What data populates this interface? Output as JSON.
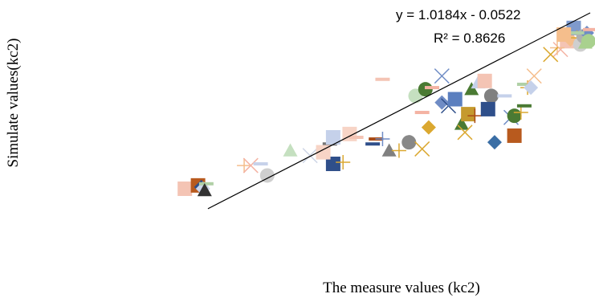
{
  "chart_data": {
    "type": "scatter",
    "xlabel": "The measure values (kc2)",
    "ylabel": "Simulate values(kc2)",
    "xlim": [
      0,
      1.25
    ],
    "ylim": [
      0,
      1.25
    ],
    "trendline": {
      "slope": 1.0184,
      "intercept": -0.0522,
      "equation": "y = 1.0184x - 0.0522",
      "r_squared": "R² = 0.8626"
    },
    "points": [
      {
        "x": 0.02,
        "y": 0.16,
        "marker": "square",
        "color": "#f4c4b4"
      },
      {
        "x": 0.06,
        "y": 0.18,
        "marker": "square",
        "color": "#b85a1e"
      },
      {
        "x": 0.07,
        "y": 0.17,
        "marker": "diamond",
        "color": "#2f4f8a"
      },
      {
        "x": 0.075,
        "y": 0.16,
        "marker": "diamond",
        "color": "#ccd6ea"
      },
      {
        "x": 0.085,
        "y": 0.19,
        "marker": "dash",
        "color": "#b0d0a6"
      },
      {
        "x": 0.08,
        "y": 0.15,
        "marker": "triangle",
        "color": "#333333"
      },
      {
        "x": 0.2,
        "y": 0.3,
        "marker": "plus",
        "color": "#f5be8c"
      },
      {
        "x": 0.22,
        "y": 0.3,
        "marker": "cross",
        "color": "#f4b3a3"
      },
      {
        "x": 0.25,
        "y": 0.31,
        "marker": "dash",
        "color": "#c7d2ea"
      },
      {
        "x": 0.27,
        "y": 0.24,
        "marker": "circle",
        "color": "#cfcfcf"
      },
      {
        "x": 0.34,
        "y": 0.39,
        "marker": "triangle",
        "color": "#c5e0c0"
      },
      {
        "x": 0.4,
        "y": 0.36,
        "marker": "cross",
        "color": "#cfd6e6"
      },
      {
        "x": 0.46,
        "y": 0.43,
        "marker": "dash",
        "color": "#757575"
      },
      {
        "x": 0.47,
        "y": 0.47,
        "marker": "square",
        "color": "#c5d1ea"
      },
      {
        "x": 0.47,
        "y": 0.31,
        "marker": "square",
        "color": "#2f4f8a"
      },
      {
        "x": 0.52,
        "y": 0.49,
        "marker": "square",
        "color": "#f7d4c6"
      },
      {
        "x": 0.54,
        "y": 0.47,
        "marker": "dash",
        "color": "#f4c4b4"
      },
      {
        "x": 0.6,
        "y": 0.46,
        "marker": "dash",
        "color": "#a94a14"
      },
      {
        "x": 0.59,
        "y": 0.43,
        "marker": "dash",
        "color": "#2f4f8a"
      },
      {
        "x": 0.62,
        "y": 0.46,
        "marker": "plus",
        "color": "#6f8cc5"
      },
      {
        "x": 0.64,
        "y": 0.39,
        "marker": "triangle",
        "color": "#808080"
      },
      {
        "x": 0.67,
        "y": 0.39,
        "marker": "plus",
        "color": "#dba830"
      },
      {
        "x": 0.7,
        "y": 0.44,
        "marker": "circle",
        "color": "#888888"
      },
      {
        "x": 0.74,
        "y": 0.4,
        "marker": "cross",
        "color": "#dba830"
      },
      {
        "x": 0.76,
        "y": 0.53,
        "marker": "diamond",
        "color": "#dba830"
      },
      {
        "x": 0.74,
        "y": 0.62,
        "marker": "dash",
        "color": "#f4b3a3"
      },
      {
        "x": 0.72,
        "y": 0.72,
        "marker": "circle",
        "color": "#c5e0c0"
      },
      {
        "x": 0.75,
        "y": 0.76,
        "marker": "circle",
        "color": "#4a7a33"
      },
      {
        "x": 0.77,
        "y": 0.77,
        "marker": "dash",
        "color": "#f4b3a3"
      },
      {
        "x": 0.8,
        "y": 0.68,
        "marker": "diamond",
        "color": "#6f8cc5"
      },
      {
        "x": 0.8,
        "y": 0.84,
        "marker": "cross",
        "color": "#6f8cc5"
      },
      {
        "x": 0.82,
        "y": 0.66,
        "marker": "cross",
        "color": "#2f4f8a"
      },
      {
        "x": 0.84,
        "y": 0.7,
        "marker": "square",
        "color": "#5b7fbf"
      },
      {
        "x": 0.86,
        "y": 0.55,
        "marker": "triangle",
        "color": "#4a7a33"
      },
      {
        "x": 0.87,
        "y": 0.5,
        "marker": "cross",
        "color": "#dba830"
      },
      {
        "x": 0.88,
        "y": 0.61,
        "marker": "square",
        "color": "#c59a2e"
      },
      {
        "x": 0.89,
        "y": 0.76,
        "marker": "triangle",
        "color": "#4a7a33"
      },
      {
        "x": 0.91,
        "y": 0.8,
        "marker": "triangle",
        "color": "#c5d1ea"
      },
      {
        "x": 0.9,
        "y": 0.6,
        "marker": "plus",
        "color": "#a94a14"
      },
      {
        "x": 0.93,
        "y": 0.81,
        "marker": "square",
        "color": "#f4c4b4"
      },
      {
        "x": 0.95,
        "y": 0.72,
        "marker": "circle",
        "color": "#808080"
      },
      {
        "x": 0.94,
        "y": 0.64,
        "marker": "square",
        "color": "#2f4f8a"
      },
      {
        "x": 0.96,
        "y": 0.44,
        "marker": "diamond",
        "color": "#3a6ea5"
      },
      {
        "x": 0.99,
        "y": 0.72,
        "marker": "dash",
        "color": "#c5d1ea"
      },
      {
        "x": 1.01,
        "y": 0.59,
        "marker": "cross",
        "color": "#6f8cc5"
      },
      {
        "x": 1.02,
        "y": 0.48,
        "marker": "square",
        "color": "#b85a1e"
      },
      {
        "x": 1.02,
        "y": 0.6,
        "marker": "circle",
        "color": "#4a7a33"
      },
      {
        "x": 1.04,
        "y": 0.62,
        "marker": "plus",
        "color": "#dba830"
      },
      {
        "x": 1.05,
        "y": 0.66,
        "marker": "dash",
        "color": "#4a7a33"
      },
      {
        "x": 1.05,
        "y": 0.79,
        "marker": "dash",
        "color": "#b0d0a6"
      },
      {
        "x": 1.06,
        "y": 0.77,
        "marker": "plus",
        "color": "#dba830"
      },
      {
        "x": 1.07,
        "y": 0.77,
        "marker": "diamond",
        "color": "#c5d1ea"
      },
      {
        "x": 1.08,
        "y": 0.84,
        "marker": "cross",
        "color": "#f5be8c"
      },
      {
        "x": 1.16,
        "y": 1.0,
        "marker": "cross",
        "color": "#f4b3a3"
      },
      {
        "x": 1.18,
        "y": 1.05,
        "marker": "square",
        "color": "#f4c4b4"
      },
      {
        "x": 1.19,
        "y": 1.06,
        "marker": "diamond",
        "color": "#f5be8c"
      },
      {
        "x": 1.2,
        "y": 1.13,
        "marker": "square",
        "color": "#7f9acc"
      },
      {
        "x": 1.21,
        "y": 1.07,
        "marker": "plus",
        "color": "#dba830"
      },
      {
        "x": 1.22,
        "y": 1.03,
        "marker": "circle",
        "color": "#cfcfcf"
      },
      {
        "x": 1.23,
        "y": 1.08,
        "marker": "circle",
        "color": "#b0b0b0"
      },
      {
        "x": 1.235,
        "y": 1.04,
        "marker": "triangle",
        "color": "#a9d18e"
      },
      {
        "x": 1.24,
        "y": 1.1,
        "marker": "diamond",
        "color": "#6f8cc5"
      },
      {
        "x": 1.245,
        "y": 1.05,
        "marker": "circle",
        "color": "#a9d18e"
      },
      {
        "x": 1.25,
        "y": 1.12,
        "marker": "dash",
        "color": "#f4b3a3"
      },
      {
        "x": 1.21,
        "y": 1.1,
        "marker": "dash",
        "color": "#b0d0a6"
      },
      {
        "x": 1.15,
        "y": 1.01,
        "marker": "plus",
        "color": "#f5be8c"
      },
      {
        "x": 1.17,
        "y": 1.09,
        "marker": "square",
        "color": "#f5be8c"
      },
      {
        "x": 1.13,
        "y": 0.97,
        "marker": "cross",
        "color": "#dba830"
      },
      {
        "x": 0.62,
        "y": 0.82,
        "marker": "dash",
        "color": "#f4c4b4"
      },
      {
        "x": 0.5,
        "y": 0.32,
        "marker": "plus",
        "color": "#dba830"
      },
      {
        "x": 0.44,
        "y": 0.38,
        "marker": "square",
        "color": "#f7d4c6"
      }
    ]
  }
}
